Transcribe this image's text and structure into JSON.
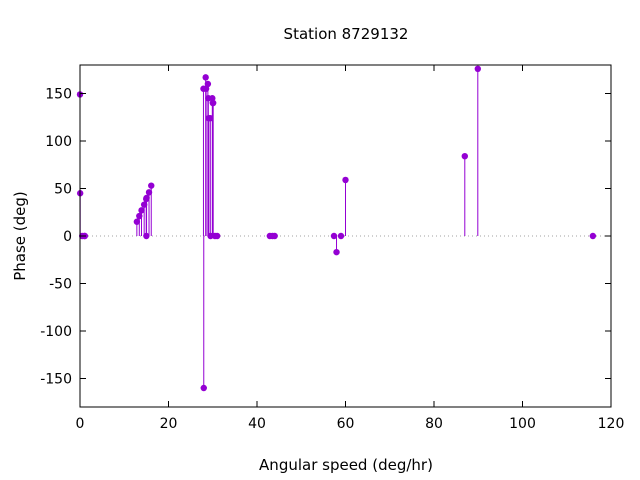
{
  "chart_data": {
    "type": "scatter",
    "style": "impulses-with-points",
    "title": "Station 8729132",
    "xlabel": "Angular speed (deg/hr)",
    "ylabel": "Phase (deg)",
    "xlim": [
      0,
      120
    ],
    "ylim": [
      -180,
      180
    ],
    "xticks": [
      0,
      20,
      40,
      60,
      80,
      100,
      120
    ],
    "yticks": [
      -150,
      -100,
      -50,
      0,
      50,
      100,
      150
    ],
    "grid": false,
    "zero_line": "dotted",
    "color": "#9400d3",
    "series": [
      {
        "points": [
          [
            0.0,
            149
          ],
          [
            0.04,
            45
          ],
          [
            0.5,
            0
          ],
          [
            1.0,
            0
          ],
          [
            1.1,
            0
          ],
          [
            12.85,
            15
          ],
          [
            13.4,
            21
          ],
          [
            13.9,
            27
          ],
          [
            14.5,
            33
          ],
          [
            14.96,
            39
          ],
          [
            15.0,
            0
          ],
          [
            15.04,
            40
          ],
          [
            15.6,
            46
          ],
          [
            16.1,
            53
          ],
          [
            27.9,
            155
          ],
          [
            27.97,
            -160
          ],
          [
            28.4,
            167
          ],
          [
            28.5,
            155
          ],
          [
            28.9,
            160
          ],
          [
            29.0,
            145
          ],
          [
            29.1,
            124
          ],
          [
            29.45,
            124
          ],
          [
            29.5,
            0
          ],
          [
            29.9,
            145
          ],
          [
            30.0,
            140
          ],
          [
            30.1,
            140
          ],
          [
            30.5,
            0
          ],
          [
            31.0,
            0
          ],
          [
            42.9,
            0
          ],
          [
            43.5,
            0
          ],
          [
            44.0,
            0
          ],
          [
            57.4,
            0
          ],
          [
            57.97,
            -17
          ],
          [
            58.98,
            0
          ],
          [
            60.0,
            59
          ],
          [
            86.96,
            84
          ],
          [
            89.9,
            176
          ],
          [
            115.9,
            0
          ]
        ]
      }
    ]
  }
}
